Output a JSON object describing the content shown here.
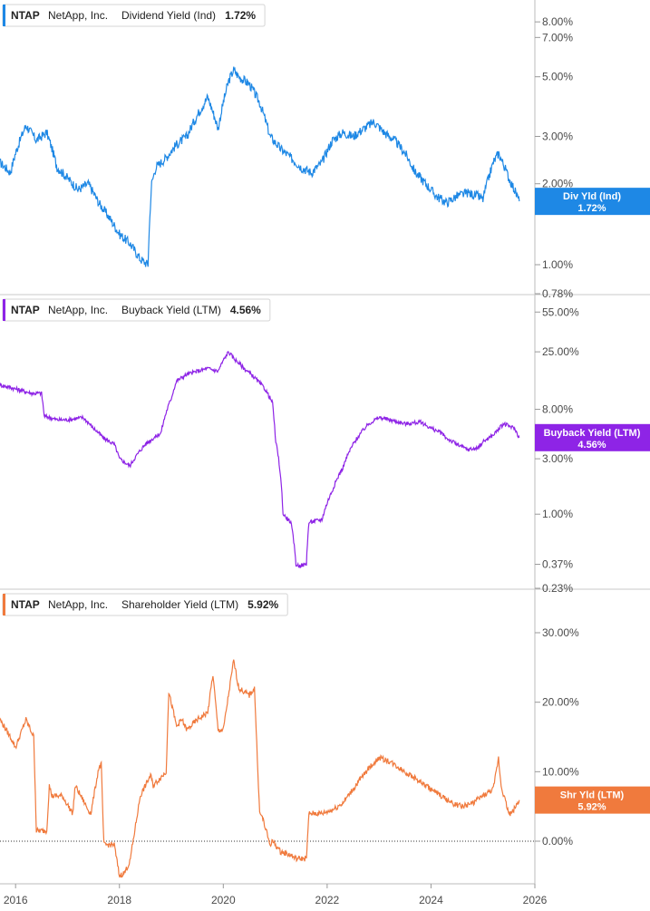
{
  "chart_data": [
    {
      "type": "line",
      "ticker": "NTAP",
      "company": "NetApp, Inc.",
      "metric": "Dividend Yield (Ind)",
      "current_value": "1.72%",
      "badge_label": "Div Yld (Ind)",
      "badge_value": "1.72%",
      "color": "#1e88e5",
      "scale": "log",
      "y_min": 0.78,
      "y_max": 9.5,
      "tick_values": [
        8,
        7,
        5,
        3,
        2,
        1,
        0.78
      ],
      "tick_labels": [
        "8.00%",
        "7.00%",
        "5.00%",
        "3.00%",
        "2.00%",
        "1.00%",
        "0.78%"
      ],
      "x": [
        2015.7,
        2015.9,
        2016.0,
        2016.2,
        2016.4,
        2016.6,
        2016.8,
        2017.0,
        2017.2,
        2017.4,
        2017.6,
        2017.8,
        2018.0,
        2018.2,
        2018.4,
        2018.55,
        2018.62,
        2018.7,
        2018.9,
        2019.1,
        2019.3,
        2019.5,
        2019.7,
        2019.9,
        2020.1,
        2020.2,
        2020.3,
        2020.5,
        2020.7,
        2020.9,
        2021.1,
        2021.3,
        2021.5,
        2021.7,
        2021.9,
        2022.1,
        2022.3,
        2022.5,
        2022.7,
        2022.9,
        2023.1,
        2023.3,
        2023.5,
        2023.7,
        2023.9,
        2024.1,
        2024.3,
        2024.5,
        2024.7,
        2024.9,
        2025.0,
        2025.2,
        2025.3,
        2025.5,
        2025.7
      ],
      "values": [
        2.4,
        2.2,
        2.6,
        3.3,
        2.9,
        3.1,
        2.3,
        2.1,
        1.9,
        2.0,
        1.7,
        1.5,
        1.3,
        1.2,
        1.05,
        1.0,
        2.0,
        2.3,
        2.5,
        2.8,
        3.0,
        3.6,
        4.2,
        3.2,
        4.8,
        5.3,
        5.0,
        4.7,
        4.0,
        3.0,
        2.7,
        2.5,
        2.3,
        2.2,
        2.4,
        2.9,
        3.1,
        3.0,
        3.2,
        3.4,
        3.1,
        2.9,
        2.6,
        2.2,
        2.0,
        1.8,
        1.7,
        1.8,
        1.85,
        1.8,
        1.75,
        2.4,
        2.6,
        2.1,
        1.72
      ]
    },
    {
      "type": "line",
      "ticker": "NTAP",
      "company": "NetApp, Inc.",
      "metric": "Buyback Yield (LTM)",
      "current_value": "4.56%",
      "badge_label": "Buyback Yield (LTM)",
      "badge_value": "4.56%",
      "color": "#8e24e6",
      "scale": "log",
      "y_min": 0.23,
      "y_max": 75,
      "tick_values": [
        55,
        25,
        8,
        3,
        1,
        0.37,
        0.23
      ],
      "tick_labels": [
        "55.00%",
        "25.00%",
        "8.00%",
        "3.00%",
        "1.00%",
        "0.37%",
        "0.23%"
      ],
      "x": [
        2015.7,
        2016.0,
        2016.3,
        2016.5,
        2016.55,
        2016.8,
        2017.0,
        2017.3,
        2017.5,
        2017.7,
        2017.9,
        2018.0,
        2018.2,
        2018.5,
        2018.8,
        2019.0,
        2019.1,
        2019.3,
        2019.5,
        2019.7,
        2019.9,
        2020.1,
        2020.2,
        2020.4,
        2020.6,
        2020.8,
        2020.95,
        2021.0,
        2021.15,
        2021.3,
        2021.4,
        2021.45,
        2021.6,
        2021.65,
        2021.9,
        2022.1,
        2022.3,
        2022.5,
        2022.8,
        2023.0,
        2023.2,
        2023.5,
        2023.8,
        2024.0,
        2024.2,
        2024.3,
        2024.5,
        2024.7,
        2024.9,
        2025.0,
        2025.2,
        2025.4,
        2025.6,
        2025.7
      ],
      "values": [
        13,
        12,
        11,
        11,
        7,
        6.5,
        6.5,
        6.8,
        5.5,
        4.5,
        4.0,
        3.0,
        2.6,
        4.0,
        5.0,
        10,
        14,
        16,
        17,
        18,
        17,
        25,
        22,
        18,
        15,
        12,
        9,
        4.5,
        1.0,
        0.85,
        0.37,
        0.36,
        0.37,
        0.85,
        0.9,
        1.6,
        2.5,
        4.0,
        6.0,
        6.8,
        6.5,
        6.0,
        6.2,
        5.5,
        5.0,
        4.5,
        4.0,
        3.6,
        3.7,
        4.2,
        4.8,
        6.0,
        5.5,
        4.56
      ]
    },
    {
      "type": "line",
      "ticker": "NTAP",
      "company": "NetApp, Inc.",
      "metric": "Shareholder Yield (LTM)",
      "current_value": "5.92%",
      "badge_label": "Shr Yld (LTM)",
      "badge_value": "5.92%",
      "color": "#f07a3d",
      "scale": "linear",
      "y_min": -6,
      "y_max": 36,
      "tick_values": [
        30,
        20,
        10,
        0
      ],
      "tick_labels": [
        "30.00%",
        "20.00%",
        "10.00%",
        "0.00%"
      ],
      "zero_line": true,
      "x": [
        2015.7,
        2015.9,
        2016.0,
        2016.2,
        2016.35,
        2016.4,
        2016.6,
        2016.65,
        2016.7,
        2016.9,
        2017.1,
        2017.15,
        2017.4,
        2017.45,
        2017.6,
        2017.65,
        2017.7,
        2017.9,
        2018.0,
        2018.1,
        2018.2,
        2018.4,
        2018.6,
        2018.65,
        2018.9,
        2018.95,
        2019.1,
        2019.2,
        2019.3,
        2019.5,
        2019.7,
        2019.8,
        2019.9,
        2020.0,
        2020.2,
        2020.3,
        2020.5,
        2020.6,
        2020.7,
        2020.75,
        2020.9,
        2020.95,
        2021.1,
        2021.3,
        2021.4,
        2021.5,
        2021.6,
        2021.65,
        2021.9,
        2022.1,
        2022.3,
        2022.5,
        2022.8,
        2023.0,
        2023.2,
        2023.5,
        2023.8,
        2024.0,
        2024.2,
        2024.4,
        2024.6,
        2024.8,
        2025.0,
        2025.2,
        2025.3,
        2025.35,
        2025.5,
        2025.55,
        2025.7
      ],
      "values": [
        17.5,
        15.0,
        13.5,
        17.5,
        15.0,
        1.5,
        1.5,
        8.0,
        6.5,
        6.5,
        4.0,
        8.0,
        4.5,
        4.0,
        10.5,
        11.0,
        -0.5,
        -0.5,
        -5.0,
        -4.5,
        -3.0,
        6.5,
        9.5,
        8.0,
        10.0,
        21.5,
        16.5,
        17.5,
        16.0,
        17.5,
        18.5,
        24.0,
        16.0,
        16.0,
        26.0,
        22.0,
        21.0,
        22.0,
        4.0,
        3.5,
        -0.5,
        0,
        -1.5,
        -2.0,
        -2.5,
        -2.5,
        -2.5,
        4.0,
        4.0,
        4.5,
        5.5,
        7.5,
        10.5,
        12.0,
        11.5,
        10.0,
        8.5,
        7.5,
        6.5,
        5.5,
        5.0,
        5.5,
        6.5,
        7.5,
        12.0,
        8.0,
        4.0,
        4.0,
        5.92
      ]
    }
  ],
  "x_axis": {
    "tick_labels": [
      "2016",
      "2018",
      "2020",
      "2022",
      "2024",
      "2026"
    ],
    "tick_values": [
      2016,
      2018,
      2020,
      2022,
      2024,
      2026
    ],
    "x_min": 2015.7,
    "x_max": 2026.0
  }
}
